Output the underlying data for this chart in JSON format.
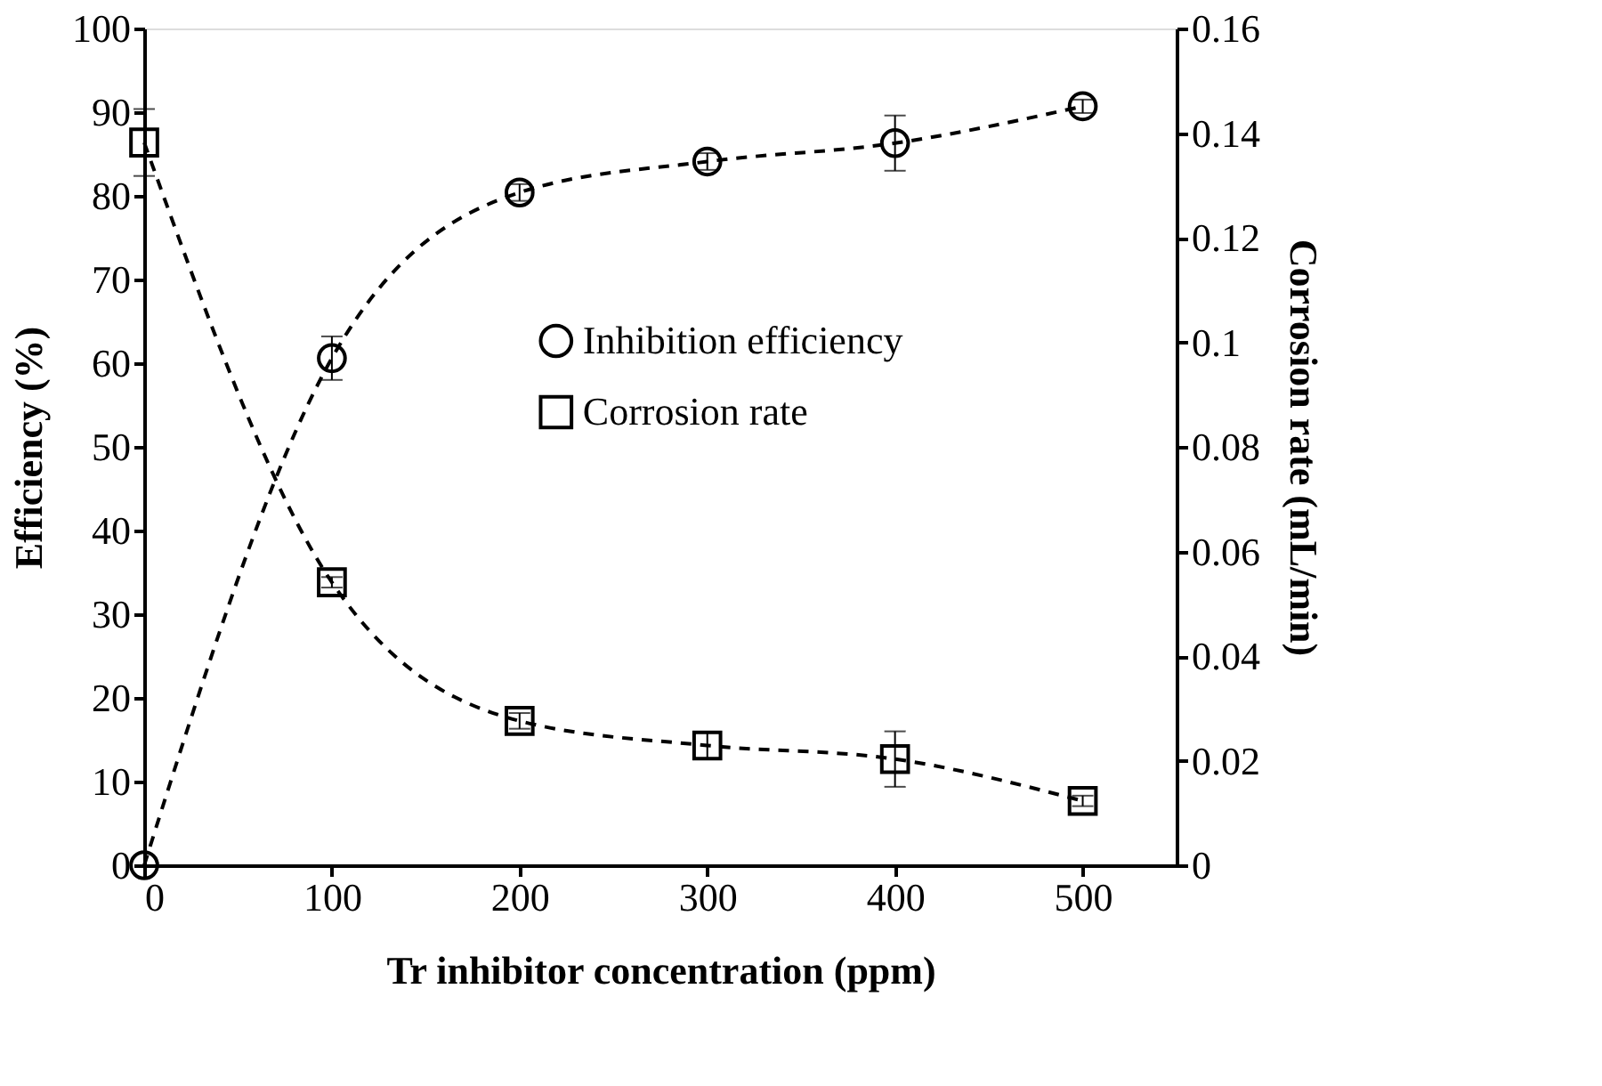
{
  "chart_data": {
    "type": "line",
    "xlabel": "Tr inhibitor concentration (ppm)",
    "ylabel": "Efficiency (%)",
    "y2label": "Corrosion rate (mL/min)",
    "x": [
      0,
      100,
      200,
      300,
      400,
      500
    ],
    "series": [
      {
        "name": "Inhibition efficiency",
        "color": "#000000",
        "marker": "circle",
        "line_style": "dashed",
        "values": [
          0,
          60.6,
          80.4,
          84.1,
          86.3,
          90.7
        ],
        "errors": [
          null,
          2.6,
          1.0,
          1.0,
          3.3,
          0.8
        ]
      },
      {
        "name": "Corrosion rate",
        "color": "#000000",
        "marker": "square",
        "line_style": "dashed",
        "axis": "y2",
        "values": [
          0.1382,
          0.0541,
          0.0276,
          0.0229,
          0.0203,
          0.0123
        ],
        "errors": [
          0.0064,
          0.001,
          0.0015,
          0.0025,
          0.0053,
          0.001
        ]
      }
    ],
    "xlim": [
      0,
      550
    ],
    "xticks": [
      0,
      100,
      200,
      300,
      400,
      500
    ],
    "ylim": [
      0,
      100
    ],
    "yticks": [
      0,
      10,
      20,
      30,
      40,
      50,
      60,
      70,
      80,
      90,
      100
    ],
    "y2lim": [
      0,
      0.16
    ],
    "y2ticks": [
      0,
      0.02,
      0.04,
      0.06,
      0.08,
      0.1,
      0.12,
      0.14,
      0.16
    ],
    "grid": false,
    "legend": "right"
  }
}
